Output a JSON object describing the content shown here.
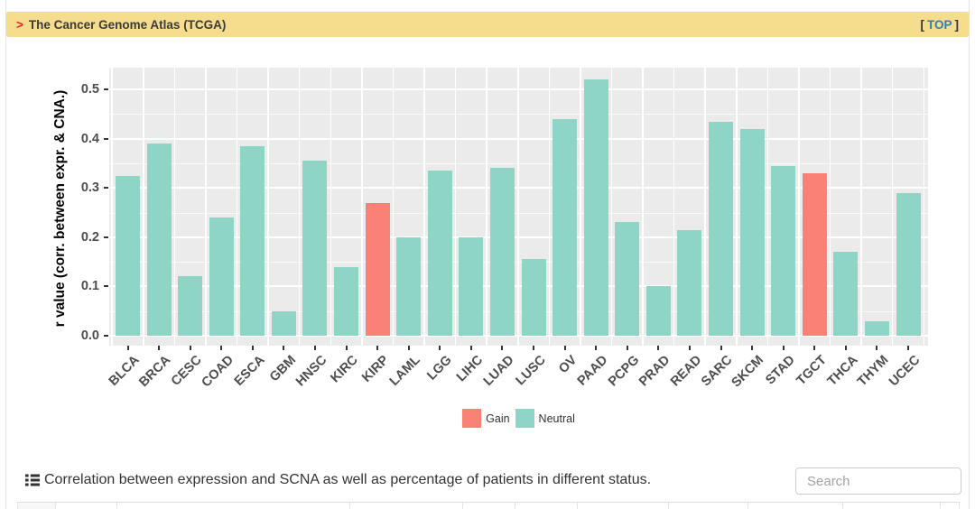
{
  "header": {
    "arrow": ">",
    "title": "The Cancer Genome Atlas (TCGA)",
    "top": {
      "open": "[",
      "label": "TOP",
      "close": "]"
    }
  },
  "chart_data": {
    "type": "bar",
    "title": "",
    "xlabel": "",
    "ylabel": "r value (corr. between expr. & CNA.)",
    "ylim": [
      0,
      0.545
    ],
    "yticks": [
      0.0,
      0.1,
      0.2,
      0.3,
      0.4,
      0.5
    ],
    "grid": "on",
    "legend_position": "bottom",
    "panel_bg": "#ebebeb",
    "categories": [
      "BLCA",
      "BRCA",
      "CESC",
      "COAD",
      "ESCA",
      "GBM",
      "HNSC",
      "KIRC",
      "KIRP",
      "LAML",
      "LGG",
      "LIHC",
      "LUAD",
      "LUSC",
      "OV",
      "PAAD",
      "PCPG",
      "PRAD",
      "READ",
      "SARC",
      "SKCM",
      "STAD",
      "TGCT",
      "THCA",
      "THYM",
      "UCEC"
    ],
    "values": [
      0.325,
      0.39,
      0.12,
      0.24,
      0.385,
      0.05,
      0.355,
      0.14,
      0.27,
      0.2,
      0.335,
      0.2,
      0.34,
      0.155,
      0.44,
      0.52,
      0.23,
      0.1,
      0.215,
      0.435,
      0.42,
      0.345,
      0.33,
      0.17,
      0.03,
      0.29
    ],
    "status": [
      "Neutral",
      "Neutral",
      "Neutral",
      "Neutral",
      "Neutral",
      "Neutral",
      "Neutral",
      "Neutral",
      "Gain",
      "Neutral",
      "Neutral",
      "Neutral",
      "Neutral",
      "Neutral",
      "Neutral",
      "Neutral",
      "Neutral",
      "Neutral",
      "Neutral",
      "Neutral",
      "Neutral",
      "Neutral",
      "Gain",
      "Neutral",
      "Neutral",
      "Neutral"
    ],
    "colors": {
      "Gain": "#fa8175",
      "Neutral": "#8ed5c6"
    },
    "legend": [
      {
        "label": "Gain",
        "color": "#fa8175"
      },
      {
        "label": "Neutral",
        "color": "#8ed5c6"
      }
    ]
  },
  "caption": {
    "icon": "list-icon",
    "text": "Correlation between expression and SCNA as well as percentage of patients in different status."
  },
  "search": {
    "placeholder": "Search"
  },
  "theme": {
    "header_bg": "#f6dd8e",
    "link_blue": "#337ab7",
    "arrow_red": "#e82222",
    "panel_gray": "#ebebeb",
    "axis_text": "#4d4d4d"
  }
}
